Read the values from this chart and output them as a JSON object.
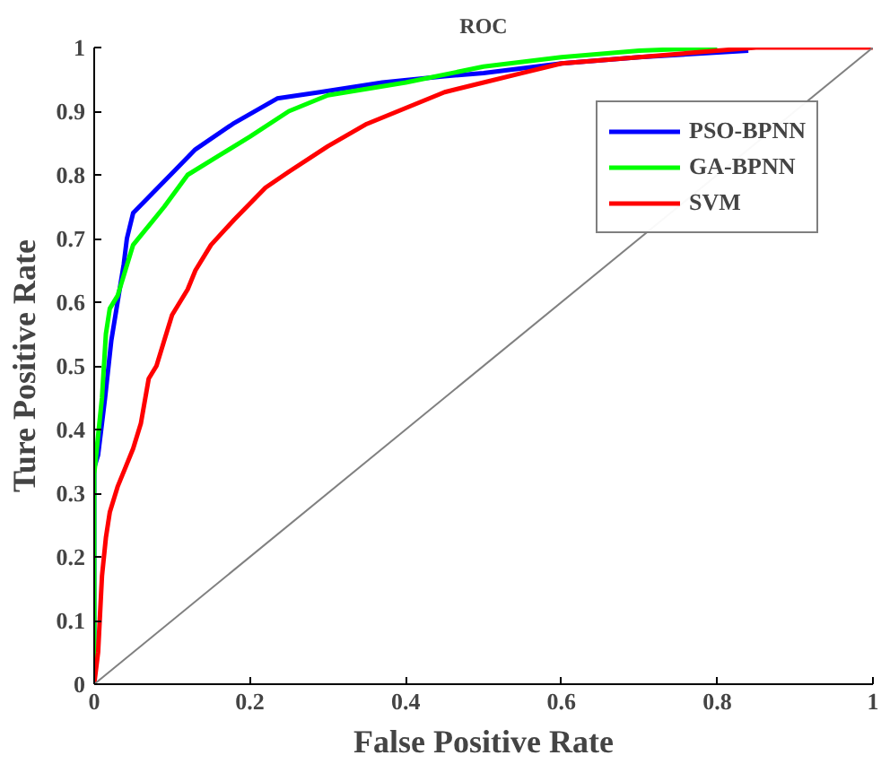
{
  "chart_data": {
    "type": "line",
    "title": "ROC",
    "xlabel": "False Positive Rate",
    "ylabel": "Ture Positive Rate",
    "xlim": [
      0,
      1
    ],
    "ylim": [
      0,
      1
    ],
    "xticks": [
      0,
      0.2,
      0.4,
      0.6,
      0.8,
      1
    ],
    "yticks": [
      0,
      0.1,
      0.2,
      0.3,
      0.4,
      0.5,
      0.6,
      0.7,
      0.8,
      0.9,
      1
    ],
    "grid": false,
    "legend": "top right",
    "marker": "none",
    "line_style": "solid",
    "series": [
      {
        "name": "PSO-BPNN",
        "color": "#0000ff",
        "x": [
          0,
          0,
          0.005,
          0.01,
          0.014,
          0.022,
          0.03,
          0.038,
          0.042,
          0.05,
          0.074,
          0.098,
          0.13,
          0.178,
          0.235,
          0.29,
          0.37,
          0.45,
          0.5,
          0.6,
          0.7,
          0.84
        ],
        "values": [
          0,
          0.34,
          0.36,
          0.41,
          0.45,
          0.54,
          0.6,
          0.66,
          0.7,
          0.74,
          0.77,
          0.8,
          0.84,
          0.88,
          0.92,
          0.93,
          0.945,
          0.955,
          0.96,
          0.975,
          0.985,
          0.995
        ]
      },
      {
        "name": "GA-BPNN",
        "color": "#00ff00",
        "x": [
          0,
          0,
          0.01,
          0.015,
          0.02,
          0.03,
          0.04,
          0.05,
          0.07,
          0.09,
          0.12,
          0.16,
          0.2,
          0.25,
          0.3,
          0.4,
          0.5,
          0.6,
          0.7,
          0.8
        ],
        "values": [
          0,
          0.33,
          0.45,
          0.55,
          0.59,
          0.61,
          0.65,
          0.69,
          0.72,
          0.75,
          0.8,
          0.83,
          0.86,
          0.9,
          0.925,
          0.945,
          0.97,
          0.985,
          0.995,
          1
        ]
      },
      {
        "name": "SVM",
        "color": "#ff0000",
        "x": [
          0,
          0.005,
          0.01,
          0.015,
          0.02,
          0.03,
          0.04,
          0.05,
          0.06,
          0.07,
          0.08,
          0.09,
          0.1,
          0.12,
          0.13,
          0.15,
          0.18,
          0.2,
          0.22,
          0.25,
          0.3,
          0.35,
          0.4,
          0.45,
          0.5,
          0.55,
          0.6,
          0.7,
          0.8,
          0.85,
          1
        ],
        "values": [
          0,
          0.05,
          0.17,
          0.23,
          0.27,
          0.31,
          0.34,
          0.37,
          0.41,
          0.48,
          0.5,
          0.54,
          0.58,
          0.62,
          0.65,
          0.69,
          0.73,
          0.755,
          0.78,
          0.805,
          0.845,
          0.88,
          0.905,
          0.93,
          0.945,
          0.96,
          0.975,
          0.985,
          0.995,
          1,
          1
        ]
      },
      {
        "color": "#808080",
        "x": [
          0,
          1
        ],
        "values": [
          0,
          1
        ]
      }
    ]
  }
}
